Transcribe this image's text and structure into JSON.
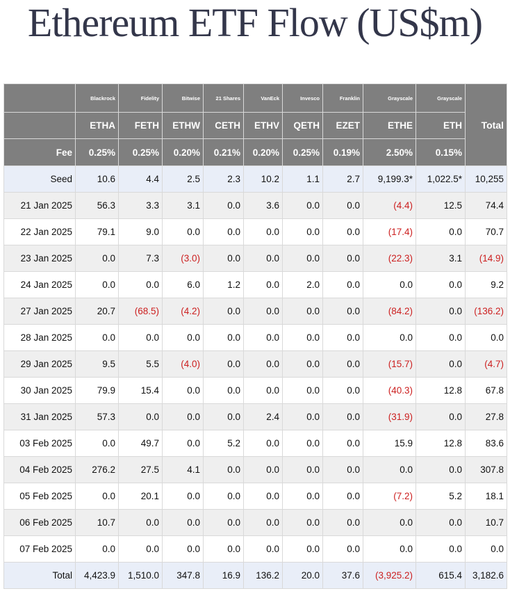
{
  "title": "Ethereum ETF Flow (US$m)",
  "colors": {
    "header_bg": "#7f7f7f",
    "header_text": "#ffffff",
    "highlight_row_bg": "#e9eef8",
    "zebra_row_bg": "#efefef",
    "negative_text": "#cc1f1f",
    "title_text": "#33364a"
  },
  "table": {
    "issuers": [
      "Blackrock",
      "Fidelity",
      "Bitwise",
      "21 Shares",
      "VanEck",
      "Invesco",
      "Franklin",
      "Grayscale",
      "Grayscale"
    ],
    "total_header": "Total",
    "tickers": [
      "ETHA",
      "FETH",
      "ETHW",
      "CETH",
      "ETHV",
      "QETH",
      "EZET",
      "ETHE",
      "ETH"
    ],
    "fee_label": "Fee",
    "fees": [
      "0.25%",
      "0.25%",
      "0.20%",
      "0.21%",
      "0.20%",
      "0.25%",
      "0.19%",
      "2.50%",
      "0.15%"
    ],
    "rows": [
      {
        "label": "Seed",
        "values": [
          "10.6",
          "4.4",
          "2.5",
          "2.3",
          "10.2",
          "1.1",
          "2.7",
          "9,199.3*",
          "1,022.5*"
        ],
        "total": "10,255"
      },
      {
        "label": "21 Jan 2025",
        "values": [
          "56.3",
          "3.3",
          "3.1",
          "0.0",
          "3.6",
          "0.0",
          "0.0",
          "(4.4)",
          "12.5"
        ],
        "total": "74.4"
      },
      {
        "label": "22 Jan 2025",
        "values": [
          "79.1",
          "9.0",
          "0.0",
          "0.0",
          "0.0",
          "0.0",
          "0.0",
          "(17.4)",
          "0.0"
        ],
        "total": "70.7"
      },
      {
        "label": "23 Jan 2025",
        "values": [
          "0.0",
          "7.3",
          "(3.0)",
          "0.0",
          "0.0",
          "0.0",
          "0.0",
          "(22.3)",
          "3.1"
        ],
        "total": "(14.9)"
      },
      {
        "label": "24 Jan 2025",
        "values": [
          "0.0",
          "0.0",
          "6.0",
          "1.2",
          "0.0",
          "2.0",
          "0.0",
          "0.0",
          "0.0"
        ],
        "total": "9.2"
      },
      {
        "label": "27 Jan 2025",
        "values": [
          "20.7",
          "(68.5)",
          "(4.2)",
          "0.0",
          "0.0",
          "0.0",
          "0.0",
          "(84.2)",
          "0.0"
        ],
        "total": "(136.2)"
      },
      {
        "label": "28 Jan 2025",
        "values": [
          "0.0",
          "0.0",
          "0.0",
          "0.0",
          "0.0",
          "0.0",
          "0.0",
          "0.0",
          "0.0"
        ],
        "total": "0.0"
      },
      {
        "label": "29 Jan 2025",
        "values": [
          "9.5",
          "5.5",
          "(4.0)",
          "0.0",
          "0.0",
          "0.0",
          "0.0",
          "(15.7)",
          "0.0"
        ],
        "total": "(4.7)"
      },
      {
        "label": "30 Jan 2025",
        "values": [
          "79.9",
          "15.4",
          "0.0",
          "0.0",
          "0.0",
          "0.0",
          "0.0",
          "(40.3)",
          "12.8"
        ],
        "total": "67.8"
      },
      {
        "label": "31 Jan 2025",
        "values": [
          "57.3",
          "0.0",
          "0.0",
          "0.0",
          "2.4",
          "0.0",
          "0.0",
          "(31.9)",
          "0.0"
        ],
        "total": "27.8"
      },
      {
        "label": "03 Feb 2025",
        "values": [
          "0.0",
          "49.7",
          "0.0",
          "5.2",
          "0.0",
          "0.0",
          "0.0",
          "15.9",
          "12.8"
        ],
        "total": "83.6"
      },
      {
        "label": "04 Feb 2025",
        "values": [
          "276.2",
          "27.5",
          "4.1",
          "0.0",
          "0.0",
          "0.0",
          "0.0",
          "0.0",
          "0.0"
        ],
        "total": "307.8"
      },
      {
        "label": "05 Feb 2025",
        "values": [
          "0.0",
          "20.1",
          "0.0",
          "0.0",
          "0.0",
          "0.0",
          "0.0",
          "(7.2)",
          "5.2"
        ],
        "total": "18.1"
      },
      {
        "label": "06 Feb 2025",
        "values": [
          "10.7",
          "0.0",
          "0.0",
          "0.0",
          "0.0",
          "0.0",
          "0.0",
          "0.0",
          "0.0"
        ],
        "total": "10.7"
      },
      {
        "label": "07 Feb 2025",
        "values": [
          "0.0",
          "0.0",
          "0.0",
          "0.0",
          "0.0",
          "0.0",
          "0.0",
          "0.0",
          "0.0"
        ],
        "total": "0.0"
      }
    ],
    "total_row": {
      "label": "Total",
      "values": [
        "4,423.9",
        "1,510.0",
        "347.8",
        "16.9",
        "136.2",
        "20.0",
        "37.6",
        "(3,925.2)",
        "615.4"
      ],
      "total": "3,182.6"
    }
  }
}
